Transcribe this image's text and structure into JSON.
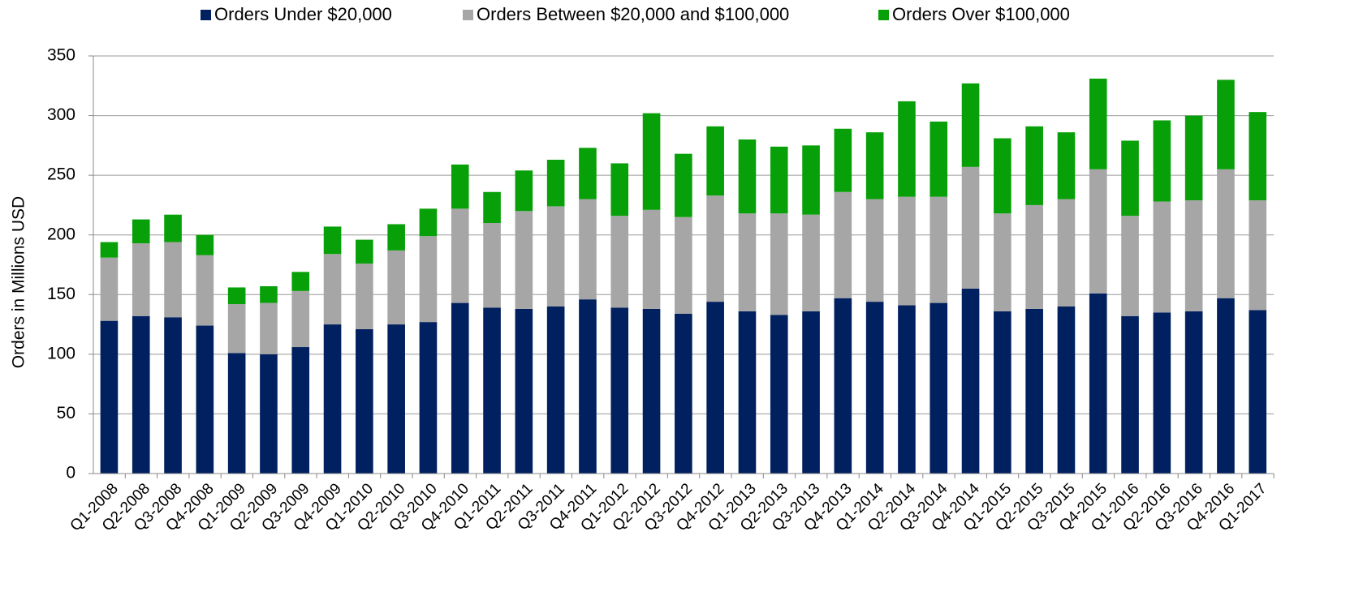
{
  "chart_data": {
    "type": "stacked_bar",
    "y_label": "Orders in Millions USD",
    "categories": [
      "Q1-2008",
      "Q2-2008",
      "Q3-2008",
      "Q4-2008",
      "Q1-2009",
      "Q2-2009",
      "Q3-2009",
      "Q4-2009",
      "Q1-2010",
      "Q2-2010",
      "Q3-2010",
      "Q4-2010",
      "Q1-2011",
      "Q2-2011",
      "Q3-2011",
      "Q4-2011",
      "Q1-2012",
      "Q2-2012",
      "Q3-2012",
      "Q4-2012",
      "Q1-2013",
      "Q2-2013",
      "Q3-2013",
      "Q4-2013",
      "Q1-2014",
      "Q2-2014",
      "Q3-2014",
      "Q4-2014",
      "Q1-2015",
      "Q2-2015",
      "Q3-2015",
      "Q4-2015",
      "Q1-2016",
      "Q2-2016",
      "Q3-2016",
      "Q4-2016",
      "Q1-2017"
    ],
    "series": [
      {
        "name": "Orders Under $20,000",
        "color": "#002060",
        "values": [
          128,
          132,
          131,
          124,
          101,
          100,
          106,
          125,
          121,
          125,
          127,
          143,
          139,
          138,
          140,
          146,
          139,
          138,
          134,
          144,
          136,
          133,
          136,
          147,
          144,
          141,
          143,
          155,
          136,
          138,
          140,
          151,
          132,
          135,
          136,
          147,
          137
        ]
      },
      {
        "name": "Orders Between $20,000 and $100,000",
        "color": "#a6a6a6",
        "values": [
          53,
          61,
          63,
          59,
          41,
          43,
          47,
          59,
          55,
          62,
          72,
          79,
          71,
          82,
          84,
          84,
          77,
          83,
          81,
          89,
          82,
          85,
          81,
          89,
          86,
          91,
          89,
          102,
          82,
          87,
          90,
          104,
          84,
          93,
          93,
          108,
          92
        ]
      },
      {
        "name": "Orders Over $100,000",
        "color": "#08a008",
        "values": [
          13,
          20,
          23,
          17,
          14,
          14,
          16,
          23,
          20,
          22,
          23,
          37,
          26,
          34,
          39,
          43,
          44,
          81,
          53,
          58,
          62,
          56,
          58,
          53,
          56,
          80,
          63,
          70,
          63,
          66,
          56,
          76,
          63,
          68,
          71,
          75,
          74
        ]
      }
    ],
    "ylim": [
      0,
      350
    ],
    "yticks": [
      0,
      50,
      100,
      150,
      200,
      250,
      300,
      350
    ],
    "grid": true,
    "legend": "top"
  }
}
